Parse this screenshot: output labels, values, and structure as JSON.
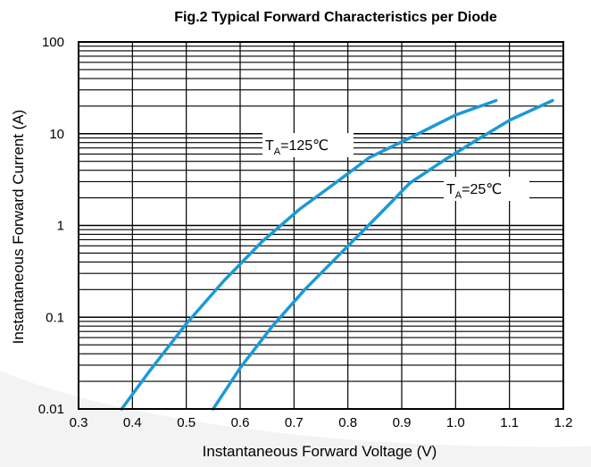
{
  "chart_data": {
    "type": "line",
    "title": "Fig.2 Typical Forward Characteristics per Diode",
    "xlabel": "Instantaneous Forward Voltage (V)",
    "ylabel": "Instantaneous Forward Current (A)",
    "x_scale": "linear",
    "y_scale": "log",
    "xlim": [
      0.3,
      1.2
    ],
    "ylim": [
      0.01,
      100
    ],
    "x_ticks": [
      "0.3",
      "0.4",
      "0.5",
      "0.6",
      "0.7",
      "0.8",
      "0.9",
      "1.0",
      "1.1",
      "1.2"
    ],
    "y_ticks": [
      "0.01",
      "0.1",
      "1",
      "10",
      "100"
    ],
    "grid": true,
    "line_color": "#1a9ad6",
    "series": [
      {
        "label_main": "T",
        "label_sub": "A",
        "label_rest": "=125℃",
        "x": [
          0.38,
          0.43,
          0.5,
          0.57,
          0.64,
          0.71,
          0.78,
          0.84,
          0.92,
          1.0,
          1.075
        ],
        "y": [
          0.01,
          0.025,
          0.085,
          0.25,
          0.66,
          1.5,
          3.0,
          5.5,
          9.3,
          16.0,
          23.0
        ]
      },
      {
        "label_main": "T",
        "label_sub": "A",
        "label_rest": "=25℃",
        "x": [
          0.55,
          0.6,
          0.66,
          0.72,
          0.79,
          0.86,
          0.915,
          0.98,
          1.04,
          1.1,
          1.18
        ],
        "y": [
          0.01,
          0.028,
          0.08,
          0.2,
          0.52,
          1.35,
          2.9,
          5.2,
          8.6,
          14.0,
          23.0
        ]
      }
    ]
  }
}
